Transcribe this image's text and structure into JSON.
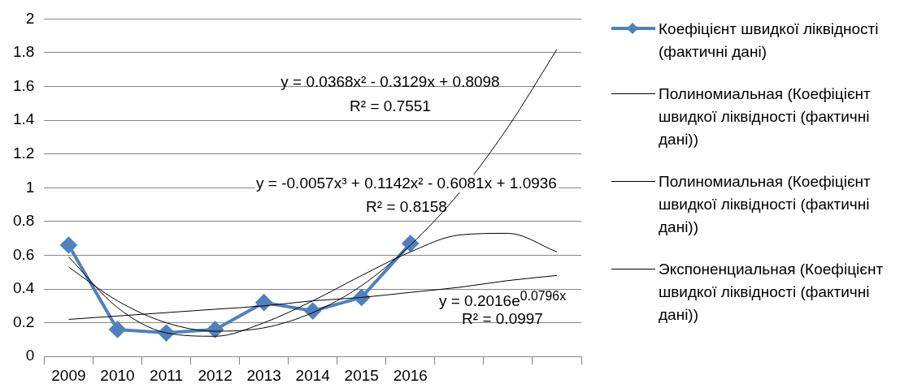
{
  "chart_data": {
    "type": "line",
    "categories": [
      "2009",
      "2010",
      "2011",
      "2012",
      "2013",
      "2014",
      "2015",
      "2016",
      null,
      null,
      null
    ],
    "ylim": [
      0,
      2
    ],
    "yticks": [
      0,
      0.2,
      0.4,
      0.6,
      0.8,
      1,
      1.2,
      1.4,
      1.6,
      1.8,
      2
    ],
    "grid": "y",
    "legend": "right",
    "series": [
      {
        "name": "Коефіцієнт швидкої ліквідності (фактичні дані)",
        "color": "#4f81bd",
        "marker": "diamond",
        "values": [
          0.66,
          0.16,
          0.14,
          0.16,
          0.32,
          0.27,
          0.35,
          0.67,
          null,
          null,
          null
        ]
      },
      {
        "name": "Полиномиальная (Коефіцієнт швидкої ліквідності (фактичні дані))",
        "color": "#000000",
        "marker": "none",
        "values": [
          0.53,
          0.33,
          0.2,
          0.15,
          0.17,
          0.26,
          0.42,
          0.66,
          0.97,
          1.36,
          1.82
        ]
      },
      {
        "name": "Полиномиальная (Коефіцієнт швидкої ліквідності (фактичні дані))",
        "color": "#000000",
        "marker": "none",
        "values": [
          0.59,
          0.29,
          0.14,
          0.12,
          0.2,
          0.33,
          0.48,
          0.62,
          0.72,
          0.73,
          0.62
        ]
      },
      {
        "name": "Экспоненциальная (Коефіцієнт швидкої ліквідності (фактичні дані))",
        "color": "#000000",
        "marker": "none",
        "values": [
          0.22,
          0.24,
          0.26,
          0.28,
          0.3,
          0.33,
          0.35,
          0.38,
          0.41,
          0.45,
          0.48
        ]
      }
    ],
    "annotations": [
      "y = 0.0368x² - 0.3129x + 0.8098",
      "R² = 0.7551",
      "y = -0.0057x³ + 0.1142x² - 0.6081x + 1.0936",
      "R² = 0.8158",
      "y = 0.2016e$^{0.0796x}$",
      "R² = 0.0997"
    ]
  }
}
